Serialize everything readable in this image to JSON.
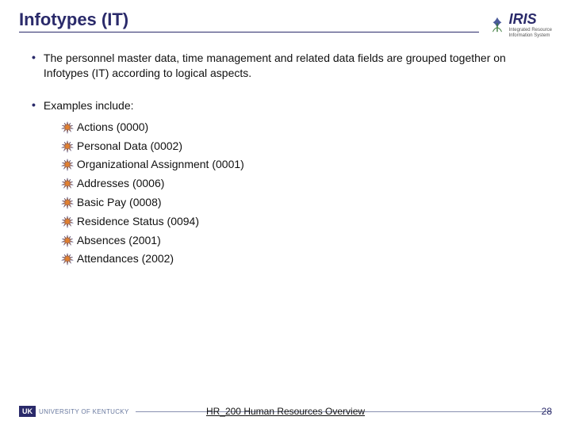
{
  "header": {
    "title": "Infotypes (IT)",
    "logo_text": "IRIS",
    "logo_sub1": "Integrated Resource",
    "logo_sub2": "Information System"
  },
  "content": {
    "bullet1": "The personnel master data, time management and related data fields are grouped together on Infotypes (IT) according to logical aspects.",
    "bullet2": "Examples include:",
    "items": [
      {
        "label": "Actions (0000)"
      },
      {
        "label": "Personal Data (0002)"
      },
      {
        "label": "Organizational Assignment (0001)"
      },
      {
        "label": "Addresses (0006)"
      },
      {
        "label": "Basic Pay (0008)"
      },
      {
        "label": "Residence Status (0094)"
      },
      {
        "label": "Absences (2001)"
      },
      {
        "label": "Attendances (2002)"
      }
    ]
  },
  "footer": {
    "uk_badge": "UK",
    "uk_text": "UNIVERSITY OF KENTUCKY",
    "course": "HR_200 Human Resources Overview",
    "page": "28"
  },
  "colors": {
    "accent": "#2a2a6a",
    "star_fill": "#e08030",
    "star_stroke": "#2a2a6a"
  }
}
